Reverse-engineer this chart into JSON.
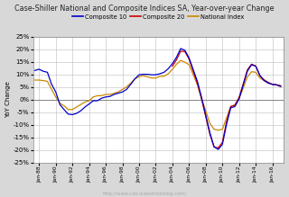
{
  "title": "Case-Shiller National and Composite Indices SA, Year-over-year Change",
  "ylabel": "YoY Change",
  "url_text": "http://www.calculatedriskblog.com/",
  "background_color": "#d8d8d8",
  "plot_bg_color": "#ffffff",
  "grid_color": "#bbbbbb",
  "legend": [
    "Composite 10",
    "Composite 20",
    "National Index"
  ],
  "colors": [
    "#0000cc",
    "#cc0000",
    "#cc8800"
  ],
  "ylim": [
    -0.25,
    0.25
  ],
  "yticks": [
    -0.25,
    -0.2,
    -0.15,
    -0.1,
    -0.05,
    0.0,
    0.05,
    0.1,
    0.15,
    0.2,
    0.25
  ],
  "years": [
    1987.5,
    1988.0,
    1988.5,
    1989.0,
    1989.5,
    1990.0,
    1990.5,
    1991.0,
    1991.5,
    1992.0,
    1992.5,
    1993.0,
    1993.5,
    1994.0,
    1994.5,
    1995.0,
    1995.5,
    1996.0,
    1996.5,
    1997.0,
    1997.5,
    1998.0,
    1998.5,
    1999.0,
    1999.5,
    2000.0,
    2000.5,
    2001.0,
    2001.5,
    2002.0,
    2002.5,
    2003.0,
    2003.5,
    2004.0,
    2004.5,
    2005.0,
    2005.5,
    2006.0,
    2006.5,
    2007.0,
    2007.5,
    2008.0,
    2008.5,
    2009.0,
    2009.5,
    2010.0,
    2010.5,
    2011.0,
    2011.5,
    2012.0,
    2012.5,
    2013.0,
    2013.5,
    2014.0,
    2014.5,
    2015.0,
    2015.5,
    2016.0,
    2016.5,
    2017.0
  ],
  "comp10": [
    0.115,
    0.12,
    0.112,
    0.108,
    0.06,
    0.03,
    -0.02,
    -0.04,
    -0.058,
    -0.06,
    -0.055,
    -0.045,
    -0.03,
    -0.018,
    -0.005,
    -0.005,
    0.005,
    0.01,
    0.012,
    0.02,
    0.025,
    0.03,
    0.04,
    0.06,
    0.082,
    0.098,
    0.1,
    0.1,
    0.098,
    0.098,
    0.102,
    0.108,
    0.122,
    0.142,
    0.168,
    0.202,
    0.195,
    0.165,
    0.118,
    0.072,
    0.008,
    -0.062,
    -0.132,
    -0.188,
    -0.198,
    -0.178,
    -0.098,
    -0.033,
    -0.028,
    0.002,
    0.058,
    0.112,
    0.138,
    0.132,
    0.095,
    0.075,
    0.065,
    0.06,
    0.058,
    0.052
  ],
  "comp20": [
    null,
    null,
    null,
    null,
    null,
    null,
    null,
    null,
    null,
    null,
    null,
    null,
    null,
    null,
    null,
    null,
    null,
    null,
    null,
    null,
    null,
    null,
    null,
    null,
    null,
    null,
    null,
    null,
    null,
    null,
    null,
    null,
    null,
    0.132,
    0.158,
    0.192,
    0.19,
    0.16,
    0.112,
    0.065,
    0.002,
    -0.068,
    -0.138,
    -0.188,
    -0.192,
    -0.17,
    -0.088,
    -0.028,
    -0.022,
    0.008,
    0.062,
    0.118,
    0.14,
    0.133,
    0.095,
    0.078,
    0.068,
    0.06,
    0.058,
    0.055
  ],
  "national": [
    0.077,
    0.077,
    0.075,
    0.072,
    0.04,
    0.01,
    -0.015,
    -0.025,
    -0.04,
    -0.04,
    -0.03,
    -0.02,
    -0.01,
    -0.005,
    0.01,
    0.015,
    0.015,
    0.02,
    0.02,
    0.025,
    0.03,
    0.04,
    0.05,
    0.065,
    0.082,
    0.09,
    0.095,
    0.09,
    0.085,
    0.085,
    0.092,
    0.092,
    0.102,
    0.12,
    0.14,
    0.155,
    0.148,
    0.138,
    0.098,
    0.058,
    0.003,
    -0.045,
    -0.095,
    -0.118,
    -0.122,
    -0.118,
    -0.073,
    -0.028,
    -0.022,
    0.005,
    0.045,
    0.09,
    0.11,
    0.108,
    0.085,
    0.075,
    0.065,
    0.06,
    0.058,
    0.05
  ],
  "xlim": [
    1987.3,
    2017.3
  ],
  "xtick_years": [
    1988,
    1990,
    1992,
    1994,
    1996,
    1998,
    2000,
    2002,
    2004,
    2006,
    2008,
    2010,
    2012,
    2014,
    2016
  ],
  "xtick_labels": [
    "Jan-88",
    "Jan-90",
    "Jan-92",
    "Jan-94",
    "Jan-96",
    "Jan-98",
    "Jan-00",
    "Jan-02",
    "Jan-04",
    "Jan-06",
    "Jan-08",
    "Jan-10",
    "Jan-12",
    "Jan-14",
    "Jan-16"
  ]
}
